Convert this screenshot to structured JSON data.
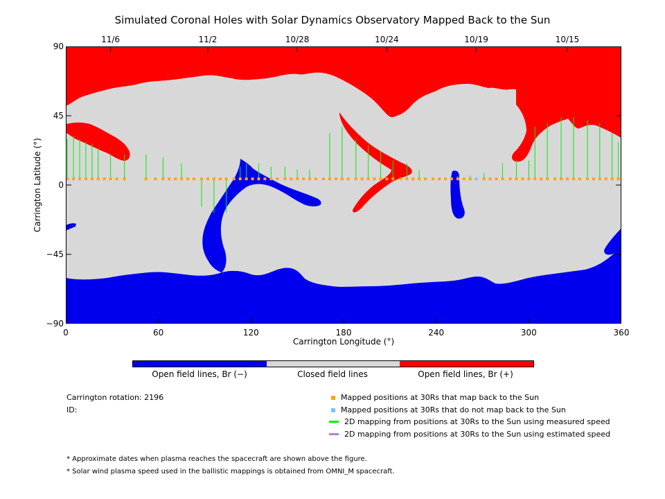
{
  "chart_data": {
    "type": "map",
    "title": "Simulated Coronal Holes with Solar Dynamics Observatory Mapped Back to the Sun",
    "xlabel": "Carrington Longitude (°)",
    "ylabel": "Carrington Latitude (°)",
    "xlim": [
      0,
      360
    ],
    "ylim": [
      -90,
      90
    ],
    "x_ticks": [
      0,
      60,
      120,
      180,
      240,
      300,
      360
    ],
    "y_ticks": [
      90,
      45,
      0,
      -45,
      -90
    ],
    "y_tick_labels": [
      "90",
      "45",
      "0",
      "−45",
      "−90"
    ],
    "top_axis": {
      "labels": [
        "11/6",
        "11/2",
        "10/28",
        "10/24",
        "10/19",
        "10/15"
      ],
      "longitudes": [
        29,
        92,
        150,
        208,
        266,
        325
      ]
    },
    "colors": {
      "open_negative": "#0000ee",
      "closed": "#d8d8d8",
      "open_positive": "#ff0000",
      "mapped_point": "#ffa500",
      "unmapped_point": "#80c0ff",
      "measured_line": "#00ee00",
      "estimated_line": "#b080e0"
    },
    "mapped_points_lat": 4,
    "mapped_points_lon": [
      1,
      5,
      9,
      13,
      17,
      21,
      25,
      29,
      33,
      38,
      52,
      58,
      63,
      67,
      71,
      75,
      79,
      83,
      88,
      92,
      96,
      100,
      104,
      109,
      113,
      117,
      121,
      125,
      129,
      133,
      137,
      142,
      146,
      150,
      154,
      158,
      162,
      167,
      171,
      175,
      179,
      183,
      188,
      192,
      196,
      200,
      204,
      208,
      212,
      217,
      221,
      225,
      229,
      233,
      238,
      242,
      246,
      250,
      254,
      258,
      262,
      271,
      275,
      279,
      283,
      288,
      292,
      296,
      300,
      304,
      308,
      312,
      317,
      321,
      325,
      329,
      333,
      338,
      342,
      346,
      350,
      354,
      358
    ],
    "unmapped_points_lon": [
      266
    ],
    "field_lines": [
      [
        1,
        30
      ],
      [
        5,
        32
      ],
      [
        9,
        30
      ],
      [
        13,
        28
      ],
      [
        17,
        27
      ],
      [
        21,
        24
      ],
      [
        29,
        20
      ],
      [
        38,
        20
      ],
      [
        52,
        20
      ],
      [
        63,
        18
      ],
      [
        75,
        14
      ],
      [
        88,
        -14
      ],
      [
        96,
        -18
      ],
      [
        104,
        -18
      ],
      [
        113,
        12
      ],
      [
        117,
        14
      ],
      [
        125,
        14
      ],
      [
        133,
        12
      ],
      [
        142,
        12
      ],
      [
        150,
        10
      ],
      [
        158,
        10
      ],
      [
        171,
        34
      ],
      [
        179,
        38
      ],
      [
        188,
        30
      ],
      [
        196,
        26
      ],
      [
        204,
        22
      ],
      [
        212,
        16
      ],
      [
        221,
        14
      ],
      [
        229,
        10
      ],
      [
        254,
        6
      ],
      [
        262,
        6
      ],
      [
        271,
        8
      ],
      [
        283,
        14
      ],
      [
        292,
        16
      ],
      [
        300,
        16
      ],
      [
        304,
        38
      ],
      [
        312,
        40
      ],
      [
        321,
        44
      ],
      [
        329,
        44
      ],
      [
        338,
        42
      ],
      [
        346,
        40
      ],
      [
        354,
        34
      ],
      [
        358,
        28
      ]
    ],
    "colorbar": {
      "labels": [
        "Open field lines, Br (−)",
        "Closed field lines",
        "Open field lines, Br (+)"
      ]
    }
  },
  "info": {
    "rotation": "Carrington rotation: 2196",
    "id": "ID:"
  },
  "legend": [
    {
      "label": "Mapped positions at 30Rs that map back to the Sun",
      "type": "square",
      "color": "#ffa500"
    },
    {
      "label": "Mapped positions at 30Rs that do not map back to the Sun",
      "type": "square",
      "color": "#80c0ff"
    },
    {
      "label": "2D mapping from positions at 30Rs to the Sun using measured speed",
      "type": "line",
      "color": "#00ee00"
    },
    {
      "label": "2D mapping from positions at 30Rs to the Sun using estimated speed",
      "type": "line",
      "color": "#b080e0"
    }
  ],
  "notes": [
    "* Approximate dates when plasma reaches the spacecraft are shown above the figure.",
    "* Solar wind plasma speed used in the ballistic mappings is obtained from OMNI_M spacecraft."
  ]
}
